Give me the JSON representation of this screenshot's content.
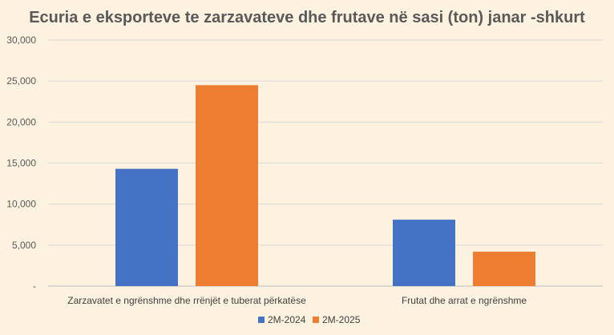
{
  "chart_data": {
    "type": "bar",
    "title": "Ecuria e eksporteve te zarzavateve dhe frutave në sasi (ton) janar -shkurt",
    "xlabel": "",
    "ylabel": "",
    "categories": [
      "Zarzavatet e ngrënshme dhe rrënjët e tuberat përkatëse",
      "Frutat dhe arrat e ngrënshme"
    ],
    "series": [
      {
        "name": "2M-2024",
        "color": "#4472c4",
        "values": [
          14300,
          8100
        ]
      },
      {
        "name": "2M-2025",
        "color": "#ed7d31",
        "values": [
          24500,
          4200
        ]
      }
    ],
    "ylim": [
      0,
      30000
    ],
    "yticks": [
      {
        "value": 0,
        "label": "-"
      },
      {
        "value": 5000,
        "label": "5,000"
      },
      {
        "value": 10000,
        "label": "10,000"
      },
      {
        "value": 15000,
        "label": "15,000"
      },
      {
        "value": 20000,
        "label": "20,000"
      },
      {
        "value": 25000,
        "label": "25,000"
      },
      {
        "value": 30000,
        "label": "30,000"
      }
    ],
    "grid": true,
    "legend_position": "bottom",
    "colors": {
      "background": "#fdf1e0",
      "grid": "#d9d9d9",
      "text": "#595959"
    }
  }
}
